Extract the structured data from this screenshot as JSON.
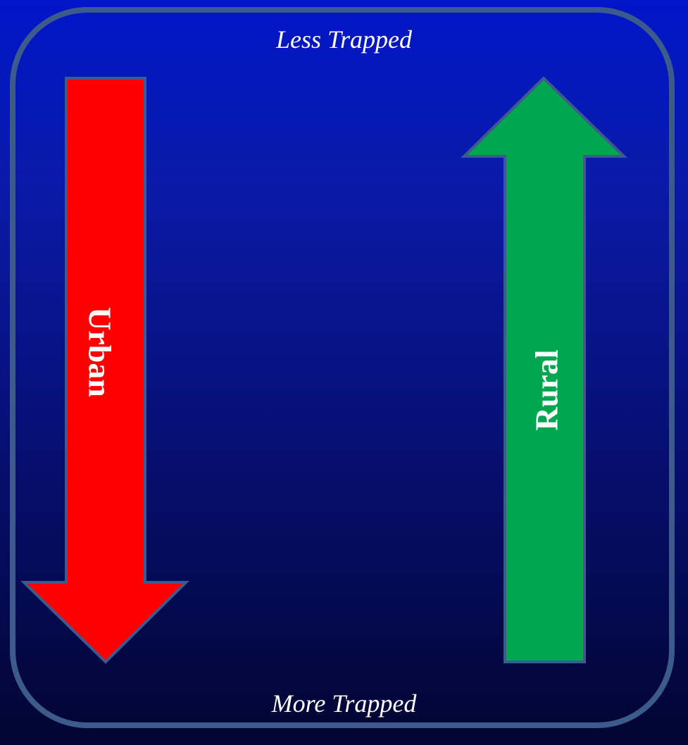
{
  "diagram": {
    "top_label": "Less Trapped",
    "bottom_label": "More Trapped",
    "arrows": [
      {
        "label": "Urban",
        "direction": "down",
        "color": "#ff0000"
      },
      {
        "label": "Rural",
        "direction": "up",
        "color": "#00a650"
      }
    ],
    "frame_color": "#3c5a8c",
    "background_top": "#0016c8",
    "background_bottom": "#020530"
  }
}
